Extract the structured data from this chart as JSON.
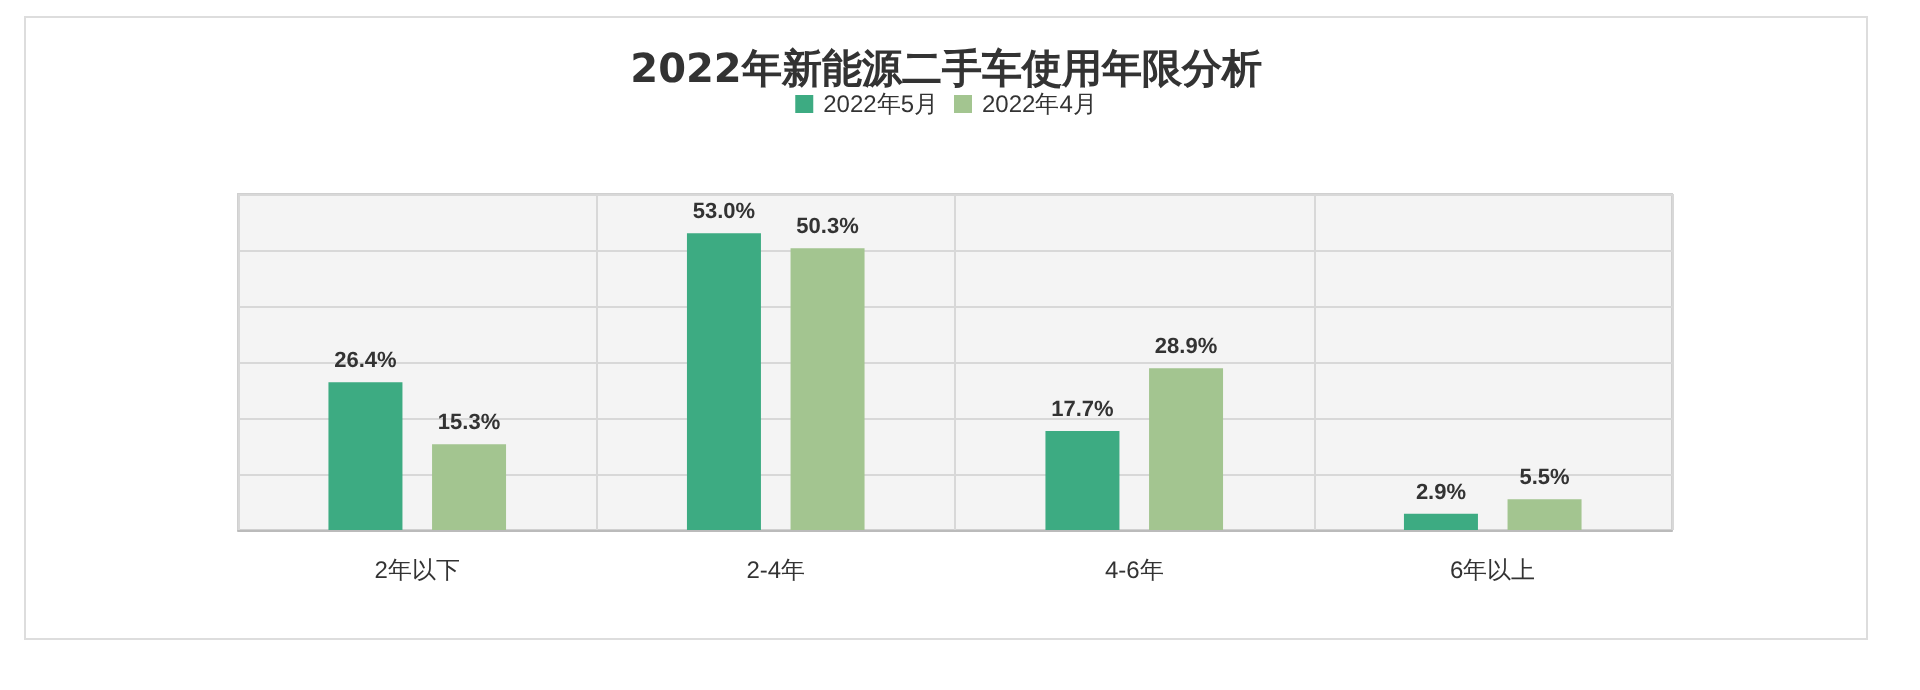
{
  "chart_data": {
    "type": "bar",
    "title": "2022年新能源二手车使用年限分析",
    "categories": [
      "2年以下",
      "2-4年",
      "4-6年",
      "6年以上"
    ],
    "series": [
      {
        "name": "2022年5月",
        "color": "#3dab82",
        "values": [
          26.4,
          53.0,
          17.7,
          2.9
        ],
        "value_labels": [
          "26.4%",
          "53.0%",
          "17.7%",
          "2.9%"
        ]
      },
      {
        "name": "2022年4月",
        "color": "#a3c590",
        "values": [
          15.3,
          50.3,
          28.9,
          5.5
        ],
        "value_labels": [
          "15.3%",
          "50.3%",
          "28.9%",
          "5.5%"
        ]
      }
    ],
    "ylim": [
      0,
      60
    ],
    "yticks": [
      0,
      10,
      20,
      30,
      40,
      50,
      60
    ],
    "grid": true,
    "legend": "top",
    "tick_labels": "x"
  }
}
